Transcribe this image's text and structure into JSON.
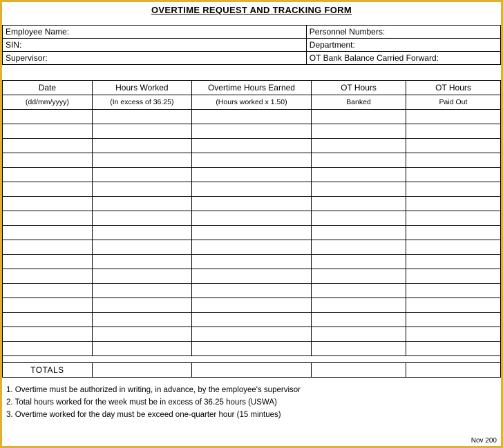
{
  "title": "OVERTIME REQUEST AND TRACKING FORM",
  "info": {
    "employee_name": "Employee Name:",
    "personnel_numbers": "Personnel Numbers:",
    "sin": "SIN:",
    "department": "Department:",
    "supervisor": "Supervisor:",
    "ot_balance": "OT Bank Balance Carried Forward:"
  },
  "headers": {
    "c1a": "Date",
    "c1b": "(dd/mm/yyyy)",
    "c2a": "Hours Worked",
    "c2b": "(In excess of 36.25)",
    "c3a": "Overtime Hours Earned",
    "c3b": "(Hours worked x 1.50)",
    "c4a": "OT Hours",
    "c4b": "Banked",
    "c5a": "OT Hours",
    "c5b": "Paid Out"
  },
  "totals_label": "TOTALS",
  "data_row_count": 17,
  "notes": {
    "n1": "1. Overtime must be authorized in writing, in advance, by the employee's supervisor",
    "n2": "2. Total hours worked for the week must be in excess of 36.25 hours (USWA)",
    "n3": "3. Overtime worked for the day must be exceed one-quarter hour (15 mintues)"
  },
  "footer_date": "Nov 200",
  "colors": {
    "frame_border": "#e0b030",
    "table_border": "#000000",
    "text": "#000000",
    "background": "#ffffff"
  }
}
